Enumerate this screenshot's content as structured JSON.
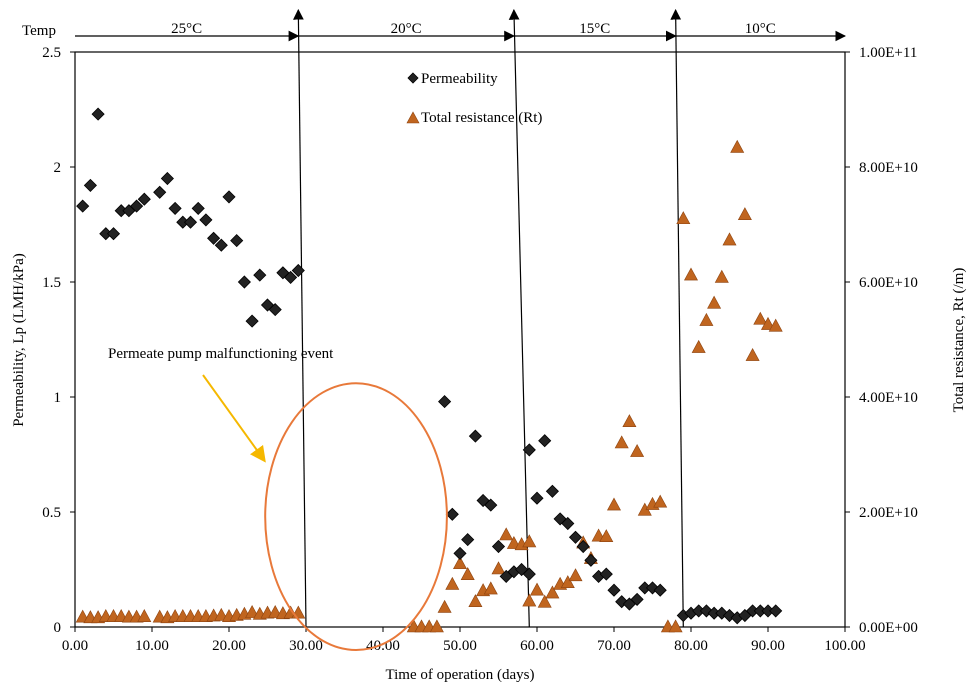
{
  "chart_data": {
    "type": "scatter",
    "xlabel": "Time of operation (days)",
    "ylabel_left": "Permeability, Lp (LMH/kPa)",
    "ylabel_right": "Total resistance, Rt (/m)",
    "xlim": [
      0,
      100
    ],
    "ylim_left": [
      0,
      2.5
    ],
    "ylim_right": [
      0,
      100000000000
    ],
    "x_ticks": [
      "0.00",
      "10.00",
      "20.00",
      "30.00",
      "40.00",
      "50.00",
      "60.00",
      "70.00",
      "80.00",
      "90.00",
      "100.00"
    ],
    "y_left_ticks": [
      "0",
      "0.5",
      "1",
      "1.5",
      "2",
      "2.5"
    ],
    "y_right_ticks": [
      "0.00E+00",
      "2.00E+10",
      "4.00E+10",
      "6.00E+10",
      "8.00E+10",
      "1.00E+11"
    ],
    "grid": false,
    "legend_position": "top-center",
    "series": [
      {
        "name": "Permeability",
        "axis": "left",
        "marker": "diamond",
        "color": "#222222",
        "points": [
          [
            1,
            1.83
          ],
          [
            2,
            1.92
          ],
          [
            3,
            2.23
          ],
          [
            4,
            1.71
          ],
          [
            5,
            1.71
          ],
          [
            6,
            1.81
          ],
          [
            7,
            1.81
          ],
          [
            8,
            1.83
          ],
          [
            9,
            1.86
          ],
          [
            11,
            1.89
          ],
          [
            12,
            1.95
          ],
          [
            13,
            1.82
          ],
          [
            14,
            1.76
          ],
          [
            15,
            1.76
          ],
          [
            16,
            1.82
          ],
          [
            17,
            1.77
          ],
          [
            18,
            1.69
          ],
          [
            19,
            1.66
          ],
          [
            20,
            1.87
          ],
          [
            21,
            1.68
          ],
          [
            22,
            1.5
          ],
          [
            23,
            1.33
          ],
          [
            24,
            1.53
          ],
          [
            25,
            1.4
          ],
          [
            26,
            1.38
          ],
          [
            27,
            1.54
          ],
          [
            28,
            1.52
          ],
          [
            29,
            1.55
          ],
          [
            48,
            0.98
          ],
          [
            49,
            0.49
          ],
          [
            50,
            0.32
          ],
          [
            51,
            0.38
          ],
          [
            52,
            0.83
          ],
          [
            53,
            0.55
          ],
          [
            54,
            0.53
          ],
          [
            55,
            0.35
          ],
          [
            56,
            0.22
          ],
          [
            57,
            0.24
          ],
          [
            58,
            0.25
          ],
          [
            59,
            0.23
          ],
          [
            59,
            0.77
          ],
          [
            60,
            0.56
          ],
          [
            61,
            0.81
          ],
          [
            62,
            0.59
          ],
          [
            63,
            0.47
          ],
          [
            64,
            0.45
          ],
          [
            65,
            0.39
          ],
          [
            66,
            0.35
          ],
          [
            67,
            0.29
          ],
          [
            68,
            0.22
          ],
          [
            69,
            0.23
          ],
          [
            70,
            0.16
          ],
          [
            71,
            0.11
          ],
          [
            72,
            0.1
          ],
          [
            73,
            0.12
          ],
          [
            74,
            0.17
          ],
          [
            75,
            0.17
          ],
          [
            76,
            0.16
          ],
          [
            79,
            0.05
          ],
          [
            80,
            0.06
          ],
          [
            81,
            0.07
          ],
          [
            82,
            0.07
          ],
          [
            83,
            0.06
          ],
          [
            84,
            0.06
          ],
          [
            85,
            0.05
          ],
          [
            86,
            0.04
          ],
          [
            87,
            0.05
          ],
          [
            88,
            0.07
          ],
          [
            89,
            0.07
          ],
          [
            90,
            0.07
          ],
          [
            91,
            0.07
          ]
        ]
      },
      {
        "name": "Total resistance (Rt)",
        "axis": "right",
        "marker": "triangle",
        "color": "#c0651f",
        "points": [
          [
            1,
            1700000000
          ],
          [
            2,
            1600000000
          ],
          [
            3,
            1600000000
          ],
          [
            4,
            1800000000
          ],
          [
            5,
            1800000000
          ],
          [
            6,
            1800000000
          ],
          [
            7,
            1700000000
          ],
          [
            8,
            1700000000
          ],
          [
            9,
            1800000000
          ],
          [
            11,
            1700000000
          ],
          [
            12,
            1600000000
          ],
          [
            13,
            1800000000
          ],
          [
            14,
            1800000000
          ],
          [
            15,
            1800000000
          ],
          [
            16,
            1800000000
          ],
          [
            17,
            1800000000
          ],
          [
            18,
            1900000000
          ],
          [
            19,
            2000000000
          ],
          [
            20,
            1800000000
          ],
          [
            21,
            2000000000
          ],
          [
            22,
            2200000000
          ],
          [
            23,
            2500000000
          ],
          [
            24,
            2200000000
          ],
          [
            25,
            2400000000
          ],
          [
            26,
            2500000000
          ],
          [
            27,
            2300000000
          ],
          [
            28,
            2400000000
          ],
          [
            29,
            2400000000
          ],
          [
            44,
            0
          ],
          [
            45,
            0
          ],
          [
            46,
            0
          ],
          [
            47,
            0
          ],
          [
            48,
            3400000000
          ],
          [
            49,
            7400000000
          ],
          [
            50,
            11000000000
          ],
          [
            51,
            9100000000
          ],
          [
            52,
            4400000000
          ],
          [
            53,
            6300000000
          ],
          [
            54,
            6600000000
          ],
          [
            55,
            10100000000
          ],
          [
            56,
            16000000000
          ],
          [
            57,
            14500000000
          ],
          [
            58,
            14300000000
          ],
          [
            59,
            14800000000
          ],
          [
            59,
            4500000000
          ],
          [
            60,
            6400000000
          ],
          [
            61,
            4300000000
          ],
          [
            62,
            5900000000
          ],
          [
            63,
            7400000000
          ],
          [
            64,
            7700000000
          ],
          [
            65,
            8900000000
          ],
          [
            66,
            14600000000
          ],
          [
            67,
            11900000000
          ],
          [
            68,
            15800000000
          ],
          [
            69,
            15700000000
          ],
          [
            70,
            21200000000
          ],
          [
            71,
            32000000000
          ],
          [
            72,
            35700000000
          ],
          [
            73,
            30500000000
          ],
          [
            74,
            20300000000
          ],
          [
            75,
            21300000000
          ],
          [
            76,
            21700000000
          ],
          [
            77,
            0
          ],
          [
            78,
            0
          ],
          [
            79,
            71000000000
          ],
          [
            80,
            61200000000
          ],
          [
            81,
            48600000000
          ],
          [
            82,
            53300000000
          ],
          [
            83,
            56300000000
          ],
          [
            84,
            60800000000
          ],
          [
            85,
            67300000000
          ],
          [
            86,
            83400000000
          ],
          [
            87,
            71700000000
          ],
          [
            88,
            47200000000
          ],
          [
            89,
            53500000000
          ],
          [
            90,
            52600000000
          ],
          [
            91,
            52300000000
          ]
        ]
      }
    ],
    "temperature": {
      "axis_label": "Temp",
      "zones": [
        {
          "label": "25°C",
          "start": 0,
          "end": 29
        },
        {
          "label": "20°C",
          "start": 29,
          "end": 57
        },
        {
          "label": "15°C",
          "start": 57,
          "end": 78
        },
        {
          "label": "10°C",
          "start": 78,
          "end": 100
        }
      ],
      "boundaries": [
        {
          "top": 29,
          "bottom": 30
        },
        {
          "top": 57,
          "bottom": 59
        },
        {
          "top": 78,
          "bottom": 79
        }
      ]
    },
    "annotation": {
      "text": "Permeate pump malfunctioning event",
      "ellipse_center": [
        36.5,
        0.48
      ],
      "ellipse_radius": [
        11.8,
        0.58
      ]
    }
  }
}
